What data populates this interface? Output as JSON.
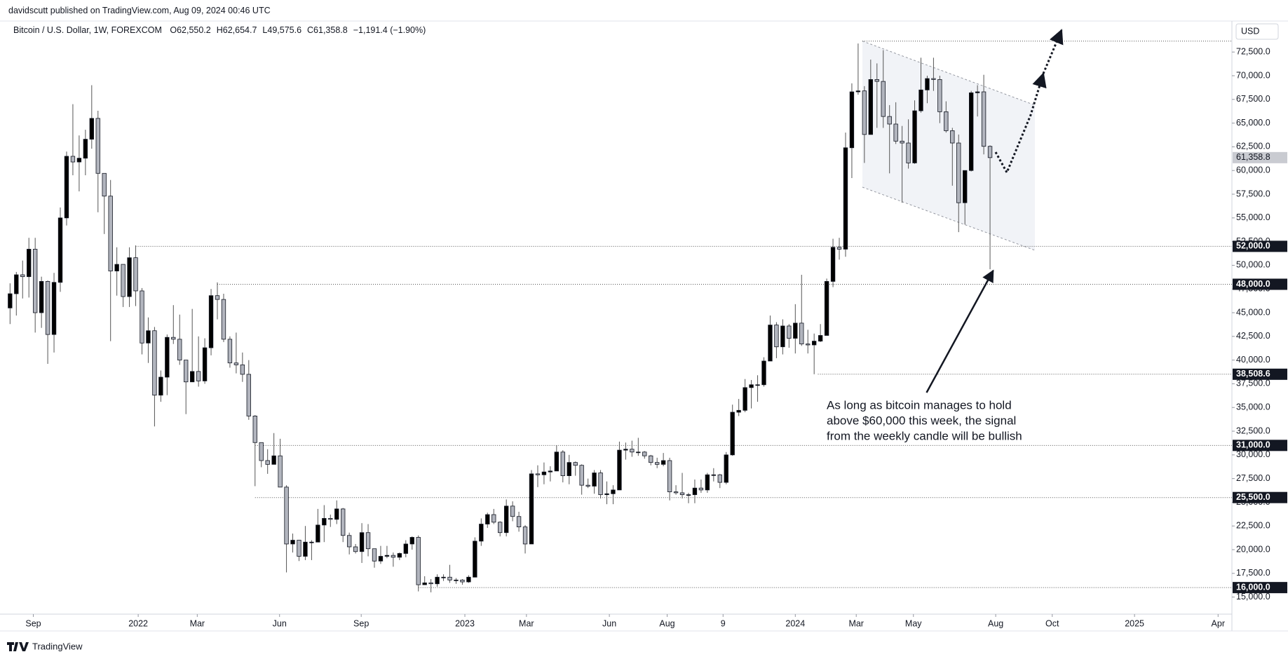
{
  "chart_data": {
    "type": "candlestick",
    "published": "davidscutt published on TradingView.com, Aug 09, 2024 00:46 UTC",
    "symbol": "Bitcoin / U.S. Dollar, 1W, FOREXCOM",
    "ohlc_labels": [
      "O62,550.2",
      "H62,654.7",
      "L49,575.6",
      "C61,358.8",
      "−1,191.4 (−1.90%)"
    ],
    "currency": "USD",
    "brand": "TradingView",
    "annotation": [
      "As long as bitcoin manages to hold",
      "above $60,000 this week, the signal",
      "from the weekly candle will be bullish"
    ],
    "up_color": "#000000",
    "down_color": "#b2b5be",
    "wick_color": "#555555",
    "grid": false,
    "xlim": [
      -1.6,
      194.5
    ],
    "ylim": [
      13200,
      75400
    ],
    "xticks": [
      {
        "value": 3.7,
        "label": "Sep"
      },
      {
        "value": 20.4,
        "label": "2022"
      },
      {
        "value": 29.8,
        "label": "Mar"
      },
      {
        "value": 42.9,
        "label": "Jun"
      },
      {
        "value": 55.9,
        "label": "Sep"
      },
      {
        "value": 72.4,
        "label": "2023"
      },
      {
        "value": 82.2,
        "label": "Mar"
      },
      {
        "value": 95.4,
        "label": "Jun"
      },
      {
        "value": 104.6,
        "label": "Aug"
      },
      {
        "value": 113.5,
        "label": "9"
      },
      {
        "value": 125,
        "label": "2024"
      },
      {
        "value": 134.7,
        "label": "Mar"
      },
      {
        "value": 143.8,
        "label": "May"
      },
      {
        "value": 156.9,
        "label": "Aug"
      },
      {
        "value": 165.9,
        "label": "Oct"
      },
      {
        "value": 179,
        "label": "2025"
      },
      {
        "value": 192.3,
        "label": "Apr"
      }
    ],
    "yticks": [
      {
        "value": 15000,
        "label": "15,000.0"
      },
      {
        "value": 17500,
        "label": "17,500.0"
      },
      {
        "value": 20000,
        "label": "20,000.0"
      },
      {
        "value": 22500,
        "label": "22,500.0"
      },
      {
        "value": 25000,
        "label": "25,000.0"
      },
      {
        "value": 27500,
        "label": "27,500.0"
      },
      {
        "value": 30000,
        "label": "30,000.0"
      },
      {
        "value": 32500,
        "label": "32,500.0"
      },
      {
        "value": 35000,
        "label": "35,000.0"
      },
      {
        "value": 37500,
        "label": "37,500.0"
      },
      {
        "value": 40000,
        "label": "40,000.0"
      },
      {
        "value": 42500,
        "label": "42,500.0"
      },
      {
        "value": 45000,
        "label": "45,000.0"
      },
      {
        "value": 47500,
        "label": "47,500.0"
      },
      {
        "value": 50000,
        "label": "50,000.0"
      },
      {
        "value": 52500,
        "label": "52,500.0"
      },
      {
        "value": 55000,
        "label": "55,000.0"
      },
      {
        "value": 57500,
        "label": "57,500.0"
      },
      {
        "value": 60000,
        "label": "60,000.0"
      },
      {
        "value": 62500,
        "label": "62,500.0"
      },
      {
        "value": 65000,
        "label": "65,000.0"
      },
      {
        "value": 67500,
        "label": "67,500.0"
      },
      {
        "value": 70000,
        "label": "70,000.0"
      },
      {
        "value": 72500,
        "label": "72,500.0"
      }
    ],
    "levels": [
      {
        "value": 52000,
        "label": "52,000.0"
      },
      {
        "value": 48000,
        "label": "48,000.0"
      },
      {
        "value": 38508.6,
        "label": "38,508.6"
      },
      {
        "value": 31000,
        "label": "31,000.0"
      },
      {
        "value": 25500,
        "label": "25,500.0"
      },
      {
        "value": 16000,
        "label": "16,000.0"
      }
    ],
    "last_price": {
      "value": 61358.8,
      "label": "61,358.8"
    },
    "candles": [
      [
        45500,
        48100,
        43800,
        47000
      ],
      [
        47000,
        49300,
        44700,
        49000
      ],
      [
        49000,
        50500,
        46500,
        48800
      ],
      [
        48800,
        52900,
        46600,
        51700
      ],
      [
        51700,
        52900,
        42900,
        45000
      ],
      [
        45000,
        48800,
        43400,
        48300
      ],
      [
        48300,
        48400,
        39600,
        42700
      ],
      [
        42700,
        49200,
        40800,
        48200
      ],
      [
        48200,
        56100,
        47200,
        55000
      ],
      [
        55000,
        62000,
        54200,
        61500
      ],
      [
        61500,
        67000,
        59500,
        60900
      ],
      [
        60900,
        63700,
        57800,
        61300
      ],
      [
        61300,
        64300,
        59500,
        63300
      ],
      [
        63300,
        69000,
        62300,
        65500
      ],
      [
        65500,
        66300,
        55600,
        59700
      ],
      [
        59700,
        59700,
        53300,
        57300
      ],
      [
        57300,
        59000,
        42000,
        49400
      ],
      [
        49400,
        51900,
        46800,
        50100
      ],
      [
        50100,
        50100,
        45600,
        46700
      ],
      [
        46700,
        51900,
        45600,
        50800
      ],
      [
        50800,
        52100,
        45700,
        47300
      ],
      [
        47300,
        47600,
        40600,
        41800
      ],
      [
        41800,
        44500,
        39700,
        43100
      ],
      [
        43100,
        43500,
        33000,
        36300
      ],
      [
        36300,
        38900,
        35600,
        38200
      ],
      [
        38200,
        42700,
        36300,
        42400
      ],
      [
        42400,
        45800,
        41700,
        42200
      ],
      [
        42200,
        44800,
        39500,
        40000
      ],
      [
        40000,
        40000,
        34300,
        37700
      ],
      [
        37700,
        45400,
        37700,
        38800
      ],
      [
        38800,
        42500,
        37200,
        37800
      ],
      [
        37800,
        42300,
        37500,
        41300
      ],
      [
        41300,
        47500,
        40500,
        46800
      ],
      [
        46800,
        48200,
        44300,
        46400
      ],
      [
        46400,
        47000,
        41900,
        42200
      ],
      [
        42200,
        42500,
        39200,
        39700
      ],
      [
        39700,
        42900,
        38600,
        39500
      ],
      [
        39500,
        40800,
        37700,
        38500
      ],
      [
        38500,
        40000,
        33700,
        34100
      ],
      [
        34100,
        34200,
        26700,
        31300
      ],
      [
        31300,
        31300,
        28700,
        29400
      ],
      [
        29400,
        30600,
        28000,
        29000
      ],
      [
        29000,
        32300,
        29000,
        29900
      ],
      [
        29900,
        31700,
        26600,
        26600
      ],
      [
        26600,
        26800,
        17600,
        20600
      ],
      [
        20600,
        21700,
        19700,
        21000
      ],
      [
        21000,
        21000,
        18800,
        19300
      ],
      [
        19300,
        22500,
        18900,
        20800
      ],
      [
        20800,
        21000,
        18900,
        20800
      ],
      [
        20800,
        24300,
        20800,
        22600
      ],
      [
        22600,
        24700,
        20800,
        23300
      ],
      [
        23300,
        23700,
        22400,
        23200
      ],
      [
        23200,
        25200,
        22700,
        24300
      ],
      [
        24300,
        24400,
        20800,
        21500
      ],
      [
        21500,
        21800,
        19500,
        20300
      ],
      [
        20300,
        20600,
        19600,
        19800
      ],
      [
        19800,
        22800,
        18600,
        21800
      ],
      [
        21800,
        22700,
        19300,
        20100
      ],
      [
        20100,
        20100,
        18100,
        18800
      ],
      [
        18800,
        20400,
        18500,
        19300
      ],
      [
        19300,
        20400,
        19100,
        19400
      ],
      [
        19400,
        19700,
        18200,
        19200
      ],
      [
        19200,
        19700,
        18900,
        19600
      ],
      [
        19600,
        21000,
        19200,
        20600
      ],
      [
        20600,
        21400,
        20000,
        21300
      ],
      [
        21300,
        21500,
        15600,
        16300
      ],
      [
        16300,
        17200,
        16300,
        16500
      ],
      [
        16500,
        16900,
        15500,
        16400
      ],
      [
        16400,
        17400,
        16100,
        17100
      ],
      [
        17100,
        17400,
        16700,
        17100
      ],
      [
        17100,
        18400,
        16500,
        16800
      ],
      [
        16800,
        17000,
        16400,
        16800
      ],
      [
        16800,
        16900,
        16300,
        16600
      ],
      [
        16600,
        17300,
        16500,
        17100
      ],
      [
        17100,
        21300,
        17100,
        20900
      ],
      [
        20900,
        23300,
        20400,
        22700
      ],
      [
        22700,
        23900,
        22300,
        23700
      ],
      [
        23700,
        24300,
        22700,
        22900
      ],
      [
        22900,
        23000,
        21400,
        21800
      ],
      [
        21800,
        25300,
        21400,
        24600
      ],
      [
        24600,
        25100,
        23000,
        23500
      ],
      [
        23500,
        24000,
        21900,
        22400
      ],
      [
        22400,
        22600,
        19600,
        20600
      ],
      [
        20600,
        28400,
        20600,
        28000
      ],
      [
        28000,
        28900,
        26600,
        27900
      ],
      [
        27900,
        29200,
        26900,
        28200
      ],
      [
        28200,
        28800,
        27200,
        28300
      ],
      [
        28300,
        31000,
        28300,
        30300
      ],
      [
        30300,
        30500,
        27100,
        27800
      ],
      [
        27800,
        30000,
        26900,
        29200
      ],
      [
        29200,
        29300,
        27800,
        28900
      ],
      [
        28900,
        29000,
        25800,
        26800
      ],
      [
        26800,
        27500,
        26500,
        26700
      ],
      [
        26700,
        28400,
        25900,
        28100
      ],
      [
        28100,
        28400,
        25400,
        25800
      ],
      [
        25800,
        27200,
        24800,
        25900
      ],
      [
        25900,
        26800,
        24800,
        26300
      ],
      [
        26300,
        31400,
        26300,
        30500
      ],
      [
        30500,
        31300,
        29500,
        30600
      ],
      [
        30600,
        31500,
        29800,
        30300
      ],
      [
        30300,
        31800,
        29900,
        30300
      ],
      [
        30300,
        30400,
        29600,
        29900
      ],
      [
        29900,
        30000,
        28900,
        29200
      ],
      [
        29200,
        29700,
        28600,
        29000
      ],
      [
        29000,
        30200,
        28800,
        29400
      ],
      [
        29400,
        29700,
        25200,
        26100
      ],
      [
        26100,
        26800,
        25800,
        26000
      ],
      [
        26000,
        28100,
        25400,
        25800
      ],
      [
        25800,
        26000,
        24900,
        25800
      ],
      [
        25800,
        27400,
        24900,
        26500
      ],
      [
        26500,
        27400,
        26000,
        26300
      ],
      [
        26300,
        28100,
        26000,
        27900
      ],
      [
        27900,
        28600,
        27200,
        27900
      ],
      [
        27900,
        28000,
        26500,
        27100
      ],
      [
        27100,
        30300,
        26900,
        30000
      ],
      [
        30000,
        35300,
        29900,
        34500
      ],
      [
        34500,
        35900,
        34100,
        34700
      ],
      [
        34700,
        38000,
        34500,
        37100
      ],
      [
        37100,
        37900,
        34900,
        37400
      ],
      [
        37400,
        38400,
        35600,
        37400
      ],
      [
        37400,
        40300,
        37200,
        39900
      ],
      [
        39900,
        44700,
        39900,
        43700
      ],
      [
        43700,
        44000,
        40200,
        41400
      ],
      [
        41400,
        44300,
        40600,
        43600
      ],
      [
        43600,
        43800,
        41300,
        42300
      ],
      [
        42300,
        45900,
        40700,
        43900
      ],
      [
        43900,
        49000,
        41500,
        41700
      ],
      [
        41700,
        43200,
        40700,
        41600
      ],
      [
        41600,
        42800,
        38508.6,
        42000
      ],
      [
        42000,
        43800,
        41900,
        42600
      ],
      [
        42600,
        48600,
        42600,
        48300
      ],
      [
        48300,
        52800,
        47700,
        51900
      ],
      [
        51900,
        52900,
        50600,
        51700
      ],
      [
        51700,
        64000,
        50900,
        62400
      ],
      [
        62400,
        69200,
        59200,
        68300
      ],
      [
        68300,
        73400,
        68000,
        68400
      ],
      [
        68400,
        68900,
        60800,
        63800
      ],
      [
        63800,
        71700,
        63800,
        69600
      ],
      [
        69600,
        71300,
        64500,
        69400
      ],
      [
        69400,
        72700,
        64500,
        65700
      ],
      [
        65700,
        66900,
        59700,
        64900
      ],
      [
        64900,
        67200,
        62800,
        63100
      ],
      [
        63100,
        64700,
        56600,
        62900
      ],
      [
        62900,
        65400,
        60200,
        60800
      ],
      [
        60800,
        67400,
        60700,
        66300
      ],
      [
        66300,
        71900,
        66100,
        68500
      ],
      [
        68500,
        70000,
        67100,
        69700
      ],
      [
        69700,
        71900,
        68400,
        69600
      ],
      [
        69600,
        70000,
        65000,
        66200
      ],
      [
        66200,
        67300,
        64000,
        64200
      ],
      [
        64200,
        64500,
        58400,
        62900
      ],
      [
        62900,
        63800,
        53500,
        56600
      ],
      [
        56600,
        60000,
        54300,
        60000
      ],
      [
        60000,
        68400,
        59900,
        68200
      ],
      [
        68200,
        69000,
        65700,
        68300
      ],
      [
        68300,
        70100,
        61700,
        62550.2
      ],
      [
        62550.2,
        62654.7,
        49575.6,
        61358.8
      ]
    ]
  }
}
